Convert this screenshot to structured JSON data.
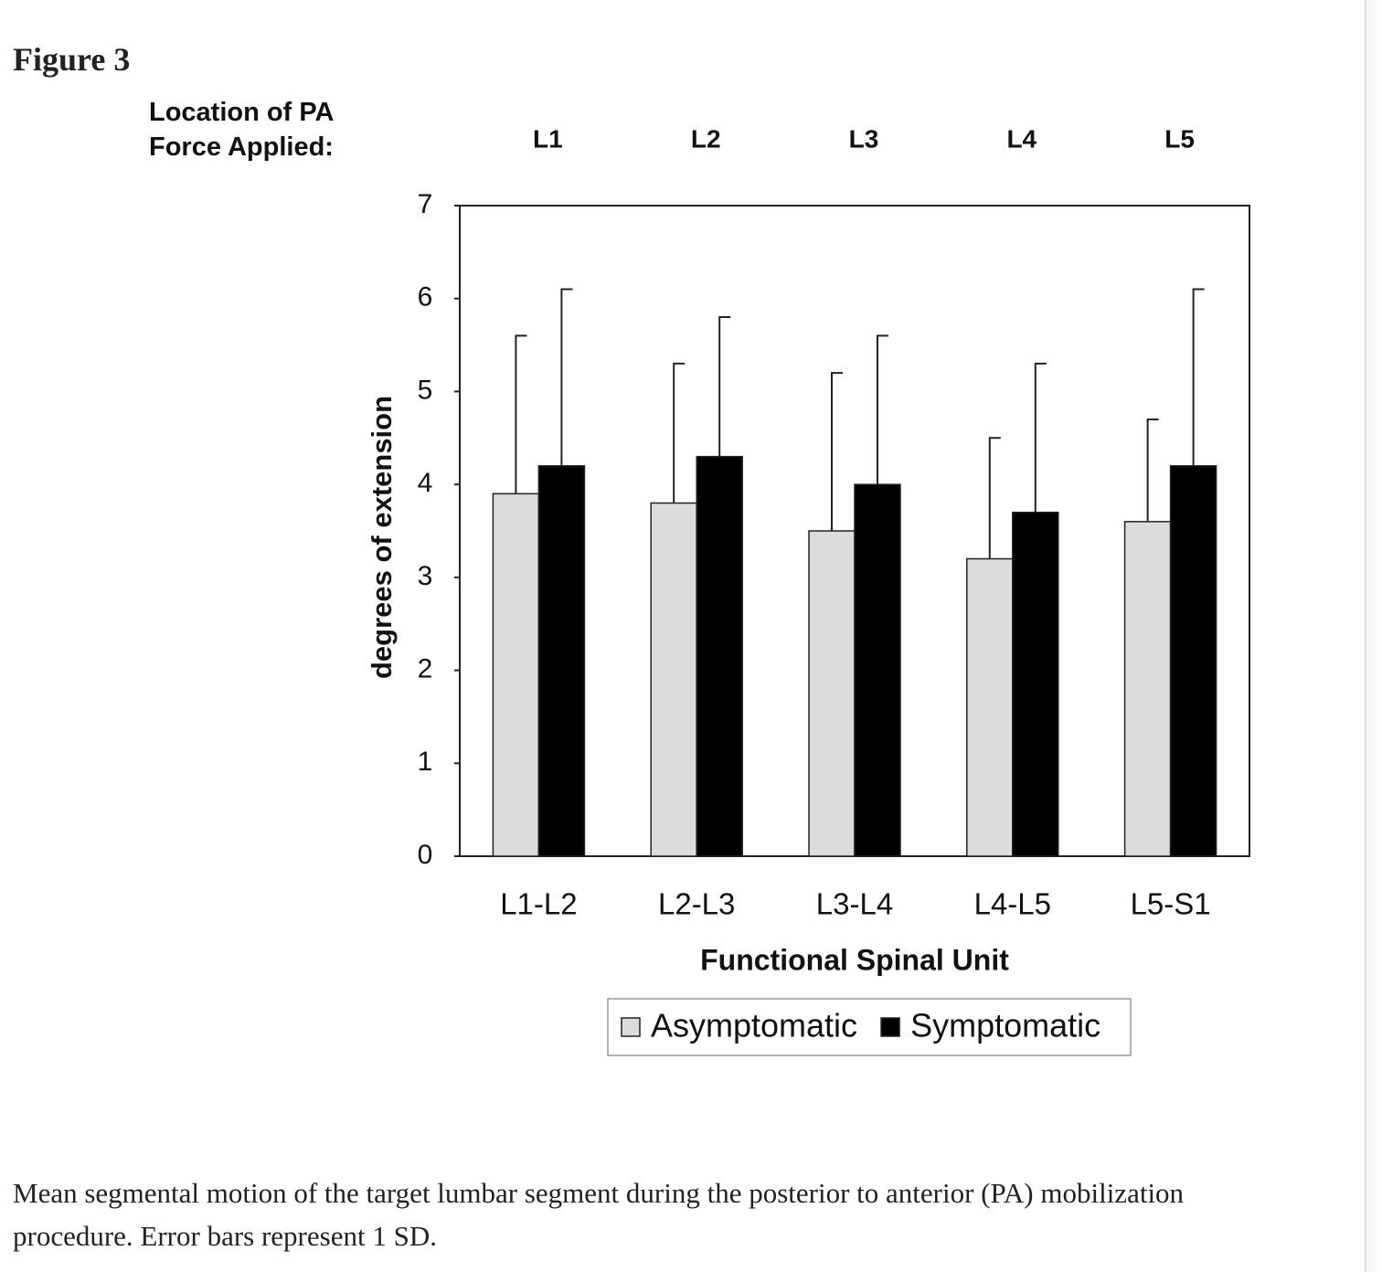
{
  "figure_label": "Figure 3",
  "caption": "Mean segmental motion of the target lumbar segment during the posterior to anterior (PA) mobilization procedure. Error bars represent 1 SD.",
  "chart_data": {
    "type": "bar",
    "annotation": "Location of PA Force Applied:",
    "top_categories": [
      "L1",
      "L2",
      "L3",
      "L4",
      "L5"
    ],
    "categories": [
      "L1-L2",
      "L2-L3",
      "L3-L4",
      "L4-L5",
      "L5-S1"
    ],
    "x_label": "Functional Spinal Unit",
    "y_label": "degrees of extension",
    "ylim": [
      0,
      7
    ],
    "yticks": [
      0,
      1,
      2,
      3,
      4,
      5,
      6,
      7
    ],
    "series": [
      {
        "name": "Asymptomatic",
        "color": "#dcdcdc",
        "values": [
          3.9,
          3.8,
          3.5,
          3.2,
          3.6
        ],
        "errors": [
          1.7,
          1.5,
          1.7,
          1.3,
          1.1
        ]
      },
      {
        "name": "Symptomatic",
        "color": "#000000",
        "values": [
          4.2,
          4.3,
          4.0,
          3.7,
          4.2
        ],
        "errors": [
          1.9,
          1.5,
          1.6,
          1.6,
          1.9
        ]
      }
    ]
  }
}
